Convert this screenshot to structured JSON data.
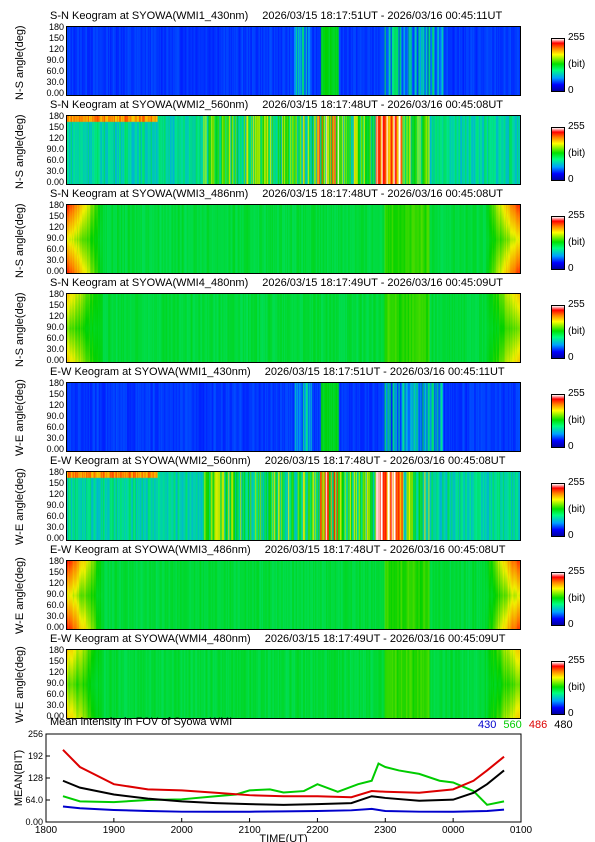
{
  "keograms": [
    {
      "prefix": "S-N Keogram at SYOWA(WMI1_430nm)",
      "range": "2026/03/15 18:17:51UT - 2026/03/16 00:45:11UT",
      "ylabel": "N-S angle(deg)",
      "kind": "weak"
    },
    {
      "prefix": "S-N Keogram at SYOWA(WMI2_560nm)",
      "range": "2026/03/15 18:17:48UT - 2026/03/16 00:45:08UT",
      "ylabel": "N-S angle(deg)",
      "kind": "strong"
    },
    {
      "prefix": "S-N Keogram at SYOWA(WMI3_486nm)",
      "range": "2026/03/15 18:17:48UT - 2026/03/16 00:45:08UT",
      "ylabel": "N-S angle(deg)",
      "kind": "edge"
    },
    {
      "prefix": "S-N Keogram at SYOWA(WMI4_480nm)",
      "range": "2026/03/15 18:17:49UT - 2026/03/16 00:45:09UT",
      "ylabel": "N-S angle(deg)",
      "kind": "edge2"
    },
    {
      "prefix": "E-W Keogram at SYOWA(WMI1_430nm)",
      "range": "2026/03/15 18:17:51UT - 2026/03/16 00:45:11UT",
      "ylabel": "W-E angle(deg)",
      "kind": "weak"
    },
    {
      "prefix": "E-W Keogram at SYOWA(WMI2_560nm)",
      "range": "2026/03/15 18:17:48UT - 2026/03/16 00:45:08UT",
      "ylabel": "W-E angle(deg)",
      "kind": "strong"
    },
    {
      "prefix": "E-W Keogram at SYOWA(WMI3_486nm)",
      "range": "2026/03/15 18:17:48UT - 2026/03/16 00:45:08UT",
      "ylabel": "W-E angle(deg)",
      "kind": "edge"
    },
    {
      "prefix": "E-W Keogram at SYOWA(WMI4_480nm)",
      "range": "2026/03/15 18:17:49UT - 2026/03/16 00:45:09UT",
      "ylabel": "W-E angle(deg)",
      "kind": "edge2"
    }
  ],
  "keogram_yticks": [
    "180",
    "150",
    "120",
    "90.0",
    "60.0",
    "30.0",
    "0.00"
  ],
  "colorbar": {
    "max": "255",
    "unit": "(bit)",
    "min": "0"
  },
  "chart_data": {
    "type": "line",
    "title": "Mean intensity in FOV of Syowa WMI",
    "xlabel": "TIME(UT)",
    "ylabel": "MEAN(BIT)",
    "x_ticks": [
      "1800",
      "1900",
      "2000",
      "2100",
      "2200",
      "2300",
      "0000",
      "0100"
    ],
    "y_ticks": [
      "256",
      "192",
      "128",
      "64.0",
      "0.00"
    ],
    "xlim": [
      18.0,
      25.0
    ],
    "ylim": [
      0,
      256
    ],
    "series": [
      {
        "name": "430",
        "color": "#0000cc",
        "x": [
          18.25,
          18.5,
          19.0,
          19.5,
          20.0,
          20.5,
          21.0,
          21.5,
          22.0,
          22.5,
          22.8,
          23.0,
          23.5,
          24.0,
          24.5,
          24.75
        ],
        "values": [
          45,
          40,
          35,
          32,
          30,
          30,
          30,
          31,
          32,
          34,
          38,
          32,
          30,
          30,
          32,
          36
        ]
      },
      {
        "name": "560",
        "color": "#00cc00",
        "x": [
          18.25,
          18.5,
          19.0,
          19.5,
          20.0,
          20.5,
          20.8,
          21.0,
          21.3,
          21.5,
          21.8,
          22.0,
          22.3,
          22.6,
          22.8,
          22.9,
          23.0,
          23.2,
          23.5,
          23.8,
          24.0,
          24.3,
          24.5,
          24.75
        ],
        "values": [
          75,
          60,
          58,
          64,
          66,
          75,
          80,
          92,
          95,
          86,
          90,
          110,
          88,
          110,
          120,
          170,
          160,
          150,
          140,
          120,
          115,
          90,
          50,
          60
        ]
      },
      {
        "name": "486",
        "color": "#dd0000",
        "x": [
          18.25,
          18.5,
          19.0,
          19.5,
          20.0,
          20.5,
          21.0,
          21.5,
          22.0,
          22.5,
          22.8,
          23.0,
          23.5,
          24.0,
          24.3,
          24.5,
          24.75
        ],
        "values": [
          210,
          160,
          110,
          95,
          92,
          85,
          78,
          75,
          75,
          72,
          90,
          88,
          85,
          95,
          120,
          150,
          190
        ]
      },
      {
        "name": "480",
        "color": "#000000",
        "x": [
          18.25,
          18.5,
          19.0,
          19.5,
          20.0,
          20.5,
          21.0,
          21.5,
          22.0,
          22.5,
          22.8,
          23.0,
          23.5,
          24.0,
          24.3,
          24.5,
          24.75
        ],
        "values": [
          120,
          100,
          80,
          68,
          60,
          55,
          52,
          50,
          52,
          55,
          75,
          70,
          62,
          65,
          85,
          110,
          150
        ]
      }
    ]
  }
}
